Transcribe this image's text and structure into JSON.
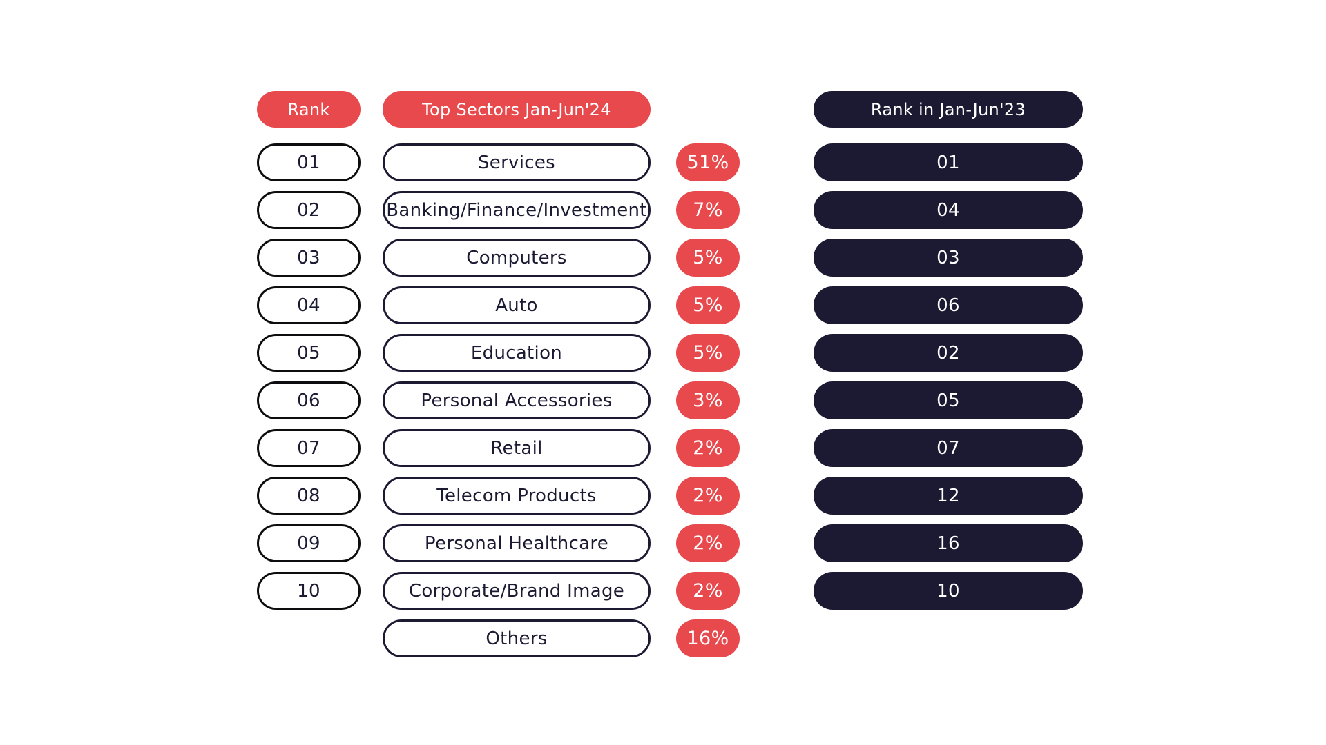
{
  "page": {
    "background": "#FFFFFF"
  },
  "colors": {
    "accent_red": "#E8494D",
    "dark_navy": "#1B1A32",
    "rank_outline_black": "#0D0D0F",
    "text_on_fill": "#FFFFFF",
    "text_on_outline": "#1B1A32"
  },
  "headers": {
    "rank": "Rank",
    "sectors": "Top Sectors Jan-Jun'24",
    "rank_prev": "Rank in Jan-Jun'23"
  },
  "rows": [
    {
      "rank": "01",
      "sector": "Services",
      "share": "51%",
      "rank_prev": "01"
    },
    {
      "rank": "02",
      "sector": "Banking/Finance/Investment",
      "share": "7%",
      "rank_prev": "04"
    },
    {
      "rank": "03",
      "sector": "Computers",
      "share": "5%",
      "rank_prev": "03"
    },
    {
      "rank": "04",
      "sector": "Auto",
      "share": "5%",
      "rank_prev": "06"
    },
    {
      "rank": "05",
      "sector": "Education",
      "share": "5%",
      "rank_prev": "02"
    },
    {
      "rank": "06",
      "sector": "Personal Accessories",
      "share": "3%",
      "rank_prev": "05"
    },
    {
      "rank": "07",
      "sector": "Retail",
      "share": "2%",
      "rank_prev": "07"
    },
    {
      "rank": "08",
      "sector": "Telecom Products",
      "share": "2%",
      "rank_prev": "12"
    },
    {
      "rank": "09",
      "sector": "Personal Healthcare",
      "share": "2%",
      "rank_prev": "16"
    },
    {
      "rank": "10",
      "sector": "Corporate/Brand Image",
      "share": "2%",
      "rank_prev": "10"
    },
    {
      "rank": "",
      "sector": "Others",
      "share": "16%",
      "rank_prev": ""
    }
  ],
  "chart_data": {
    "type": "table",
    "title": "",
    "columns": [
      "Rank",
      "Top Sectors Jan-Jun'24",
      "",
      "Rank in Jan-Jun'23"
    ],
    "rows": [
      [
        "01",
        "Services",
        "51%",
        "01"
      ],
      [
        "02",
        "Banking/Finance/Investment",
        "7%",
        "04"
      ],
      [
        "03",
        "Computers",
        "5%",
        "03"
      ],
      [
        "04",
        "Auto",
        "5%",
        "06"
      ],
      [
        "05",
        "Education",
        "5%",
        "02"
      ],
      [
        "06",
        "Personal Accessories",
        "3%",
        "05"
      ],
      [
        "07",
        "Retail",
        "2%",
        "07"
      ],
      [
        "08",
        "Telecom Products",
        "2%",
        "12"
      ],
      [
        "09",
        "Personal Healthcare",
        "2%",
        "16"
      ],
      [
        "10",
        "Corporate/Brand Image",
        "2%",
        "10"
      ],
      [
        "",
        "Others",
        "16%",
        ""
      ]
    ],
    "share_values_pct": [
      51,
      7,
      5,
      5,
      5,
      3,
      2,
      2,
      2,
      2,
      16
    ]
  }
}
